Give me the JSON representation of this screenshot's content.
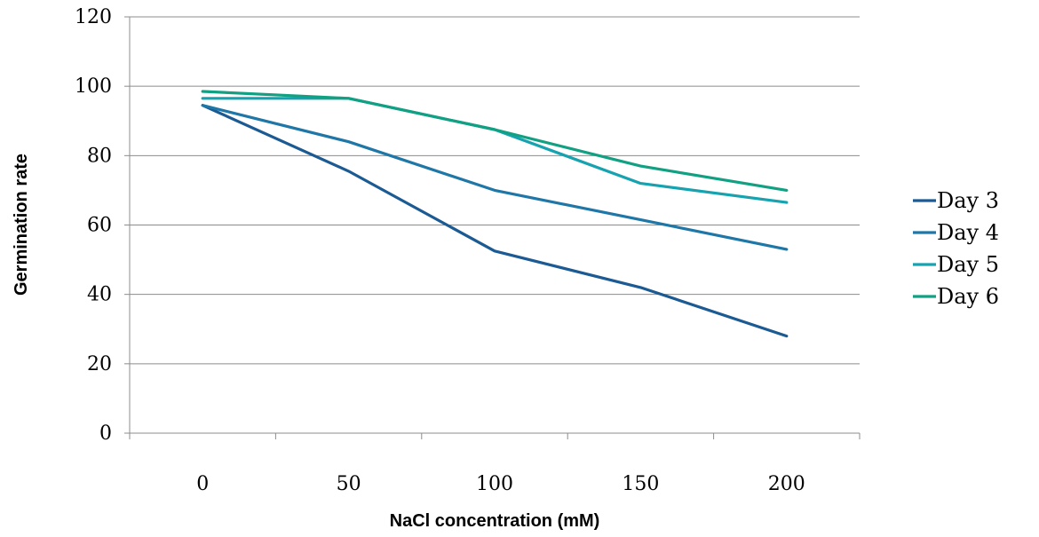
{
  "chart_data": {
    "type": "line",
    "title": "",
    "xlabel": "NaCl concentration (mM)",
    "ylabel": "Germination rate",
    "categories": [
      "0",
      "50",
      "100",
      "150",
      "200"
    ],
    "ylim": [
      0,
      120
    ],
    "yticks": [
      0,
      20,
      40,
      60,
      80,
      100,
      120
    ],
    "grid": "horizontal",
    "legend_position": "right",
    "series": [
      {
        "name": "Day 3",
        "color": "#1b5a93",
        "values": [
          94.5,
          75.5,
          52.5,
          42,
          28
        ]
      },
      {
        "name": "Day 4",
        "color": "#1f77a8",
        "values": [
          94.5,
          84,
          70,
          61.5,
          53
        ]
      },
      {
        "name": "Day 5",
        "color": "#17a2b0",
        "values": [
          96.5,
          96.5,
          87.5,
          72,
          66.5
        ]
      },
      {
        "name": "Day 6",
        "color": "#12a083",
        "values": [
          98.5,
          96.5,
          87.5,
          77,
          70
        ]
      }
    ]
  }
}
